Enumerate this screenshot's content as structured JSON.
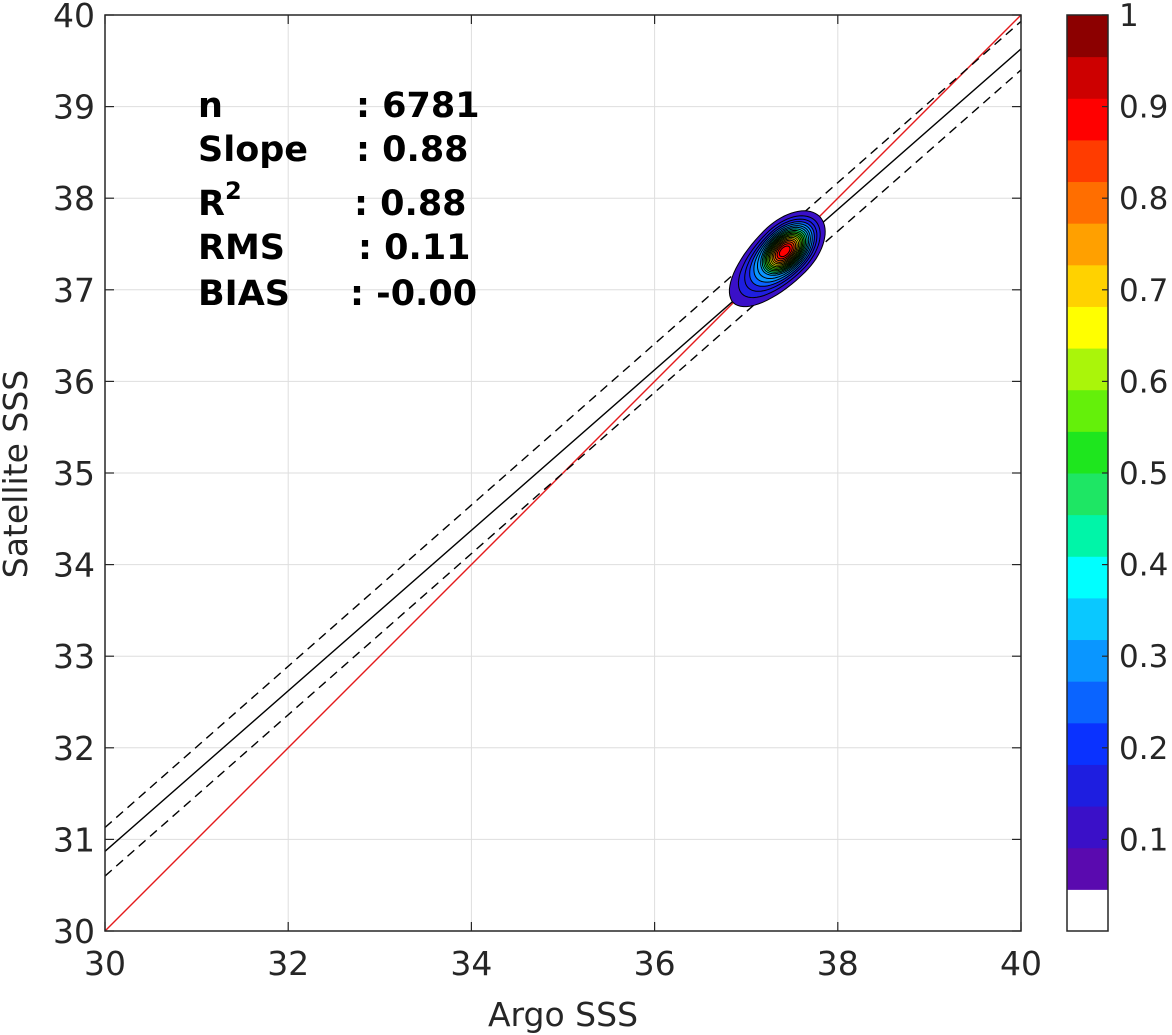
{
  "chart_data": {
    "type": "contour-scatter",
    "xlabel": "Argo SSS",
    "ylabel": "Satellite SSS",
    "xlim": [
      30,
      40
    ],
    "ylim": [
      30,
      40
    ],
    "xticks": [
      "30",
      "32",
      "34",
      "36",
      "38",
      "40"
    ],
    "yticks": [
      "30",
      "31",
      "32",
      "33",
      "34",
      "35",
      "36",
      "37",
      "38",
      "39",
      "40"
    ],
    "grid": true,
    "stats": {
      "n_label": "n",
      "n_value": ": 6781",
      "slope_label": "Slope",
      "slope_value": ": 0.88",
      "r2_label": "R",
      "r2_sup": "2",
      "r2_value": ": 0.88",
      "rms_label": "RMS",
      "rms_value": ": 0.11",
      "bias_label": "BIAS",
      "bias_value": ": -0.00"
    },
    "lines": [
      {
        "role": "one-to-one",
        "color": "#e41a1c",
        "style": "solid",
        "points": [
          [
            30,
            30
          ],
          [
            40,
            40
          ]
        ]
      },
      {
        "role": "regression-fit",
        "color": "#000000",
        "style": "solid",
        "points": [
          [
            30,
            30.87
          ],
          [
            40,
            39.63
          ]
        ]
      },
      {
        "role": "upper-bound",
        "color": "#000000",
        "style": "dashed",
        "points": [
          [
            30,
            31.13
          ],
          [
            40,
            39.93
          ]
        ]
      },
      {
        "role": "lower-bound",
        "color": "#000000",
        "style": "dashed",
        "points": [
          [
            30,
            30.6
          ],
          [
            40,
            39.4
          ]
        ]
      }
    ],
    "density_center": [
      37.42,
      37.42
    ],
    "density_peak": 1.0,
    "contour_levels": [
      0.05,
      0.1,
      0.15,
      0.2,
      0.25,
      0.3,
      0.35,
      0.4,
      0.45,
      0.5,
      0.55,
      0.6,
      0.65,
      0.7,
      0.75,
      0.8,
      0.85,
      0.9,
      0.95
    ],
    "colorbar": {
      "range": [
        0,
        1
      ],
      "ticks": [
        "0.1",
        "0.2",
        "0.3",
        "0.4",
        "0.5",
        "0.6",
        "0.7",
        "0.8",
        "0.9",
        "1"
      ],
      "colors": [
        "#ffffff",
        "#5a0aaf",
        "#3a10c8",
        "#1e1ee0",
        "#0a32ff",
        "#0a64ff",
        "#0a96ff",
        "#0ac8ff",
        "#00ffff",
        "#00f5a8",
        "#1ee664",
        "#1ee61e",
        "#64f00a",
        "#aaf50a",
        "#ffff00",
        "#ffd200",
        "#ffa000",
        "#ff6e00",
        "#ff3c00",
        "#ff0000",
        "#cd0000",
        "#8c0000"
      ]
    }
  }
}
